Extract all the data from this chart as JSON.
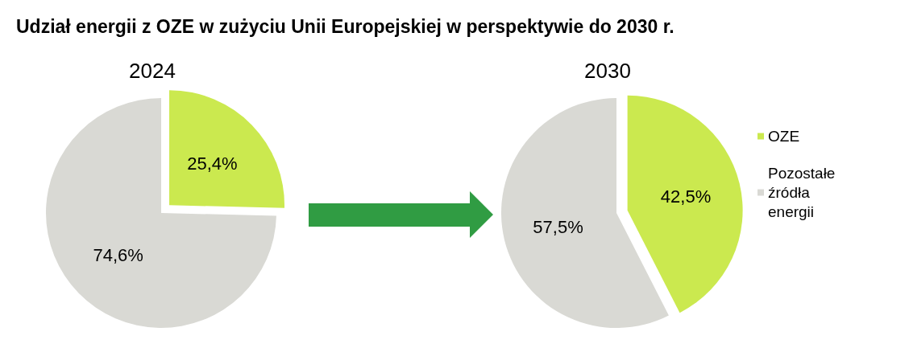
{
  "chart_data": [
    {
      "type": "pie",
      "title": "Udział energii z OZE w zużyciu Unii Europejskiej w perspektywie do 2030 r.",
      "subtitle": "2024",
      "categories": [
        null,
        null
      ],
      "values": [
        25.4,
        74.6
      ],
      "value_labels": [
        "25,4%",
        "74,6%"
      ],
      "colors": [
        "#cbe94f",
        "#d9d9d4"
      ],
      "legend": false
    },
    {
      "type": "pie",
      "subtitle": "2030",
      "categories": [
        "OZE",
        "Pozostałe źródła energii"
      ],
      "values": [
        42.5,
        57.5
      ],
      "value_labels": [
        "42,5%",
        "57,5%"
      ],
      "colors": [
        "#cbe94f",
        "#d9d9d4"
      ],
      "legend": "right"
    }
  ]
}
